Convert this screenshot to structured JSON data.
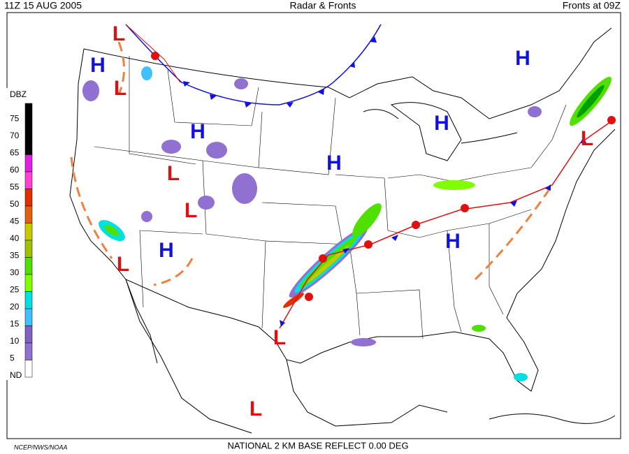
{
  "header": {
    "valid_time": "11Z  15 AUG  2005",
    "title": "Radar & Fronts",
    "fronts_time": "Fronts at 09Z"
  },
  "legend": {
    "title": "DBZ",
    "entries": [
      {
        "label": "75",
        "color": "#000000"
      },
      {
        "label": "70",
        "color": "#000000"
      },
      {
        "label": "65",
        "color": "#000000"
      },
      {
        "label": "60",
        "color": "#e020e0"
      },
      {
        "label": "55",
        "color": "#ff40d0"
      },
      {
        "label": "50",
        "color": "#e03000"
      },
      {
        "label": "45",
        "color": "#e06010"
      },
      {
        "label": "40",
        "color": "#c8c800"
      },
      {
        "label": "35",
        "color": "#a0c000"
      },
      {
        "label": "30",
        "color": "#50e000"
      },
      {
        "label": "25",
        "color": "#80ff00"
      },
      {
        "label": "20",
        "color": "#00e0e0"
      },
      {
        "label": "15",
        "color": "#40c0ff"
      },
      {
        "label": "10",
        "color": "#8060c0"
      },
      {
        "label": "5",
        "color": "#9070d0"
      },
      {
        "label": "ND",
        "color": "#ffffff"
      }
    ]
  },
  "centers": [
    {
      "label": "L"
    },
    {
      "label": "H"
    },
    {
      "label": "L"
    },
    {
      "label": "H"
    },
    {
      "label": "H"
    },
    {
      "label": "H"
    },
    {
      "label": "L"
    },
    {
      "label": "H"
    },
    {
      "label": "L"
    },
    {
      "label": "L"
    },
    {
      "label": "H"
    },
    {
      "label": "L"
    },
    {
      "label": "H"
    },
    {
      "label": "L"
    },
    {
      "label": "L"
    }
  ],
  "footer": {
    "credit": "NCEP/NWS/NOAA",
    "product": "NATIONAL 2 KM BASE REFLECT 0.00 DEG"
  }
}
